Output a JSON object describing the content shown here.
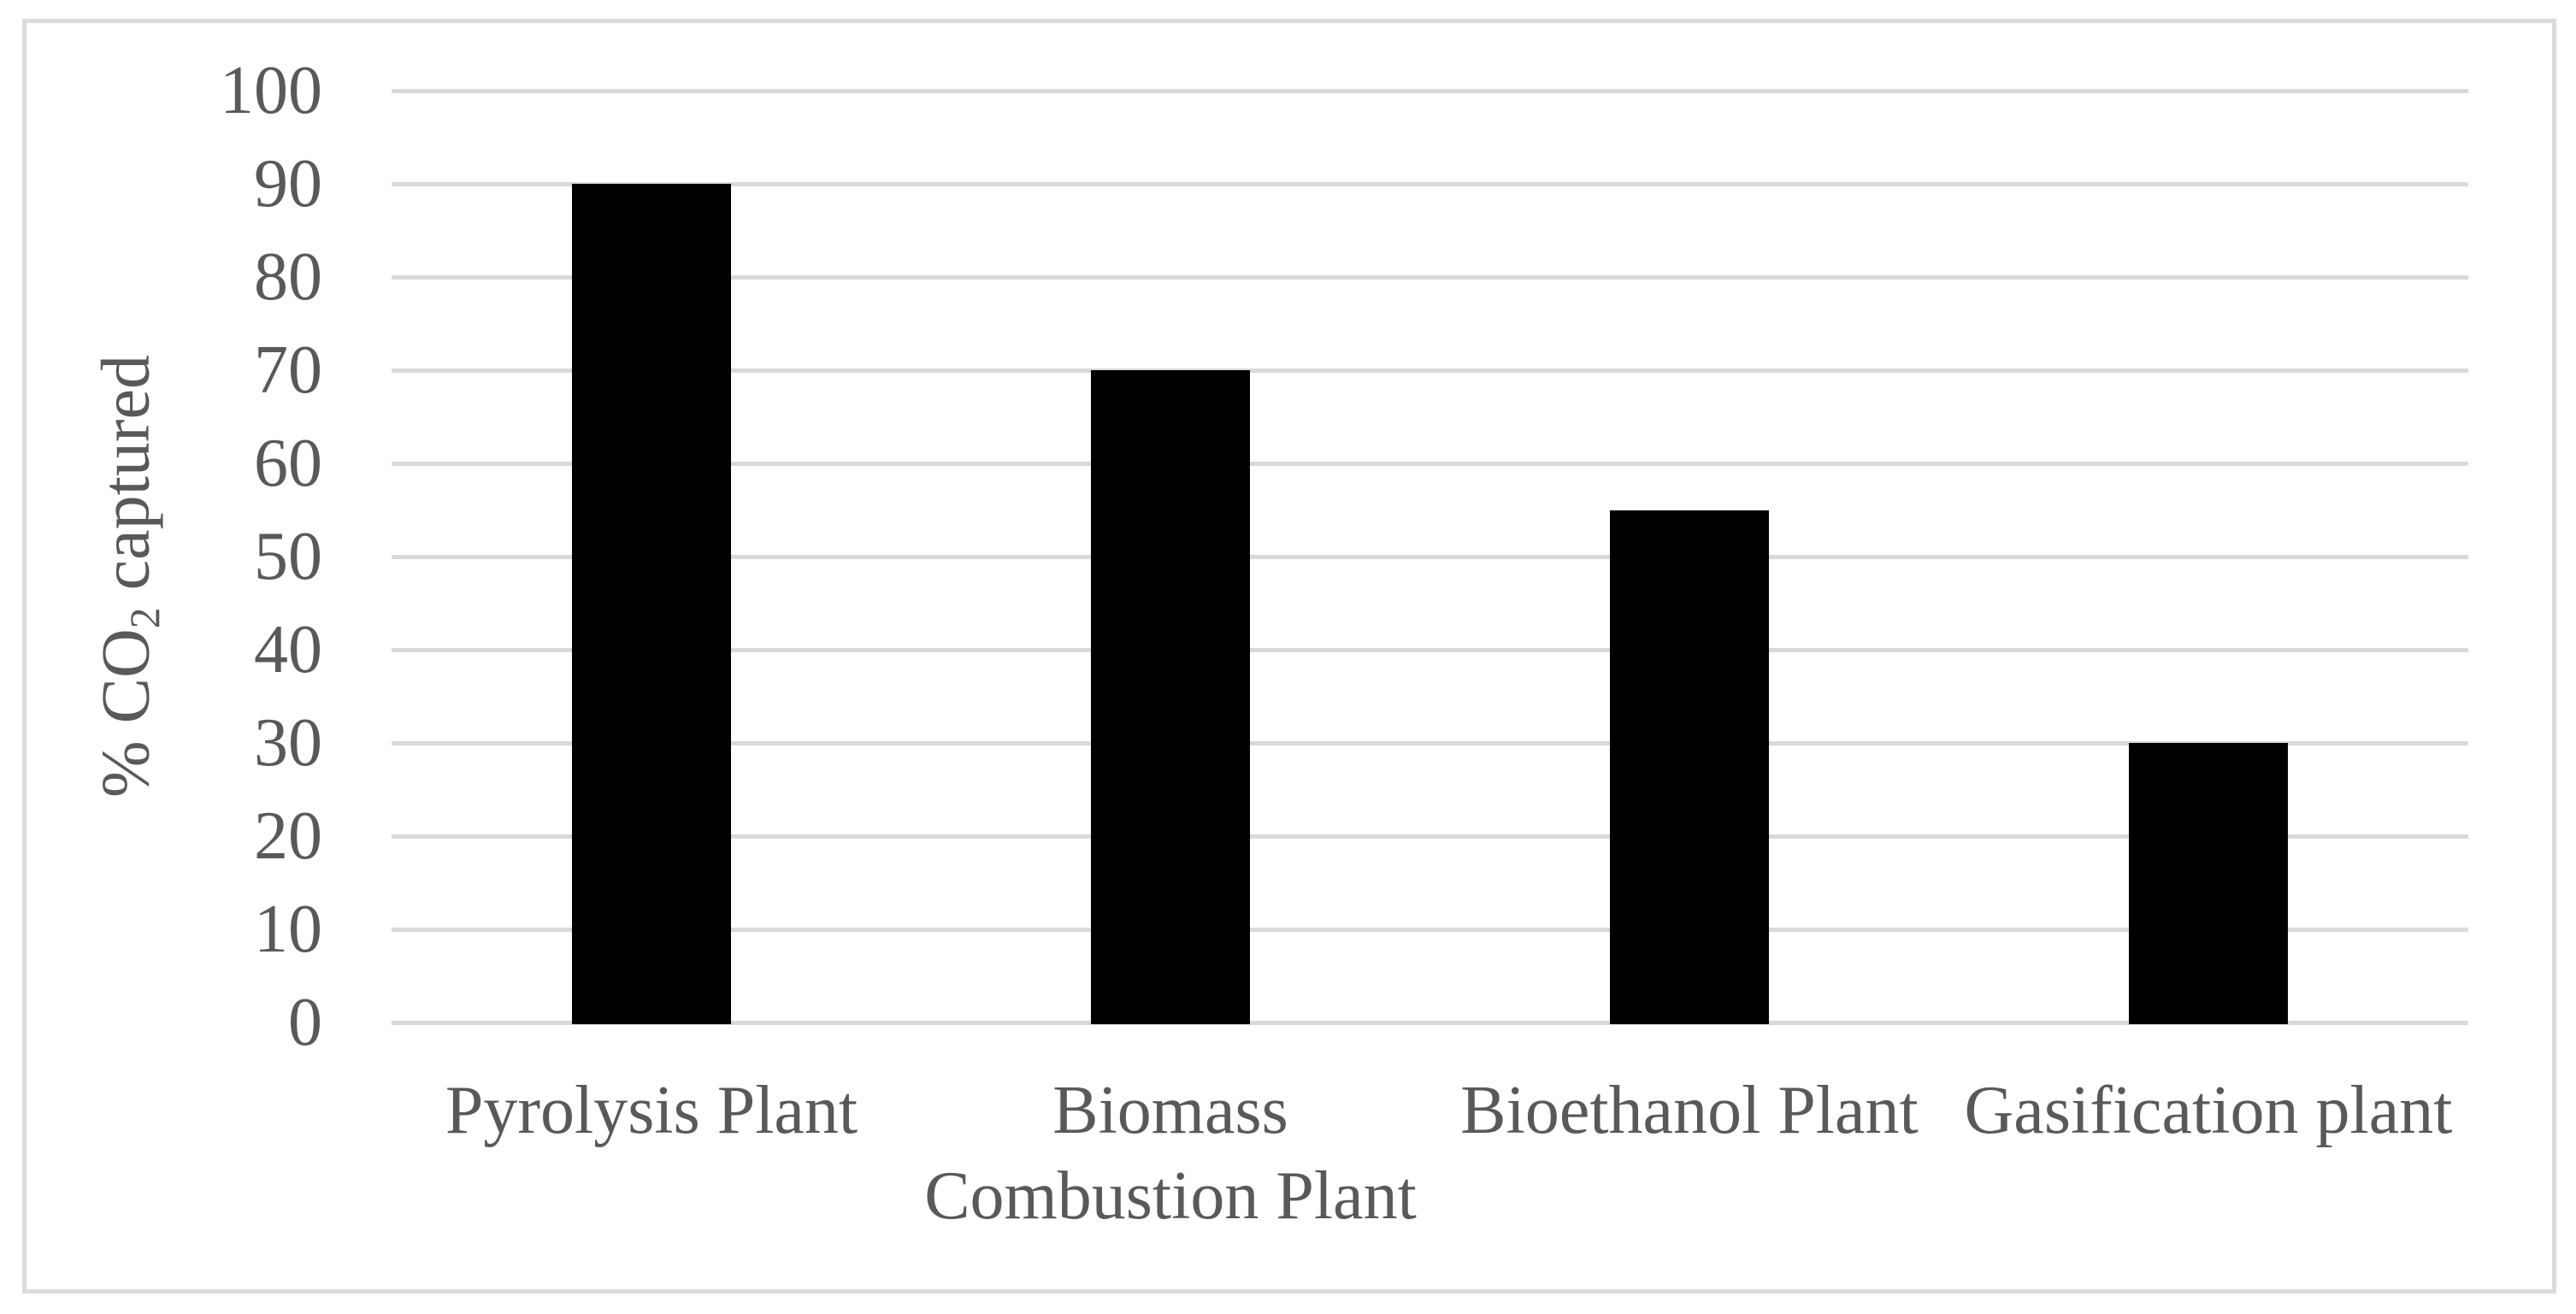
{
  "chart_data": {
    "type": "bar",
    "title": "",
    "categories": [
      "Pyrolysis Plant",
      "Biomass Combustion Plant",
      "Bioethanol Plant",
      "Gasification plant"
    ],
    "category_label_lines": [
      [
        "Pyrolysis Plant"
      ],
      [
        "Biomass",
        "Combustion Plant"
      ],
      [
        "Bioethanol Plant"
      ],
      [
        "Gasification plant"
      ]
    ],
    "values": [
      90,
      70,
      55,
      30
    ],
    "series": [
      {
        "name": "% CO2 captured",
        "values": [
          90,
          70,
          55,
          30
        ]
      }
    ],
    "xlabel": "",
    "ylabel": {
      "prefix": "% CO",
      "subscript": "2",
      "suffix": " captured"
    },
    "ylabel_text": "% CO2 captured",
    "yticks": [
      0,
      10,
      20,
      30,
      40,
      50,
      60,
      70,
      80,
      90,
      100
    ],
    "ylim": [
      0,
      100
    ],
    "grid": "horizontal",
    "legend": "none",
    "colors": {
      "bar": "#000000",
      "gridline": "#D9D9D9",
      "text": "#595959",
      "frame_border": "#DBDBDB",
      "background": "#FFFFFF"
    }
  }
}
